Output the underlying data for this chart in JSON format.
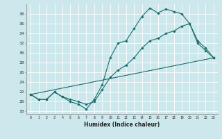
{
  "xlabel": "Humidex (Indice chaleur)",
  "bg_color": "#cce8ec",
  "line_color": "#1a6b6b",
  "grid_color": "#ffffff",
  "xlim": [
    -0.5,
    23.5
  ],
  "ylim": [
    17.5,
    40
  ],
  "yticks": [
    18,
    20,
    22,
    24,
    26,
    28,
    30,
    32,
    34,
    36,
    38
  ],
  "xticks": [
    0,
    1,
    2,
    3,
    4,
    5,
    6,
    7,
    8,
    9,
    10,
    11,
    12,
    13,
    14,
    15,
    16,
    17,
    18,
    19,
    20,
    21,
    22,
    23
  ],
  "line1_x": [
    0,
    1,
    2,
    3,
    4,
    5,
    6,
    7,
    8,
    9,
    10,
    11,
    12,
    13,
    14,
    15,
    16,
    17,
    18,
    19,
    20,
    21,
    22,
    23
  ],
  "line1_y": [
    21.5,
    20.5,
    20.5,
    22,
    21,
    20,
    19.5,
    18.5,
    20.5,
    23.5,
    29,
    32,
    32.5,
    35,
    37.5,
    39.2,
    38.2,
    39,
    38.5,
    38,
    36,
    32,
    30.5,
    29
  ],
  "line2_x": [
    0,
    1,
    2,
    3,
    4,
    5,
    6,
    7,
    8,
    9,
    10,
    11,
    12,
    13,
    14,
    15,
    16,
    17,
    18,
    19,
    20,
    21,
    22,
    23
  ],
  "line2_y": [
    21.5,
    20.5,
    20.5,
    22,
    21,
    20.5,
    20,
    19.5,
    20,
    22.5,
    25,
    26.5,
    27.5,
    29,
    31,
    32.5,
    33,
    34,
    34.5,
    35.5,
    36,
    32.5,
    31,
    29
  ],
  "line3_x": [
    0,
    23
  ],
  "line3_y": [
    21.5,
    29
  ]
}
